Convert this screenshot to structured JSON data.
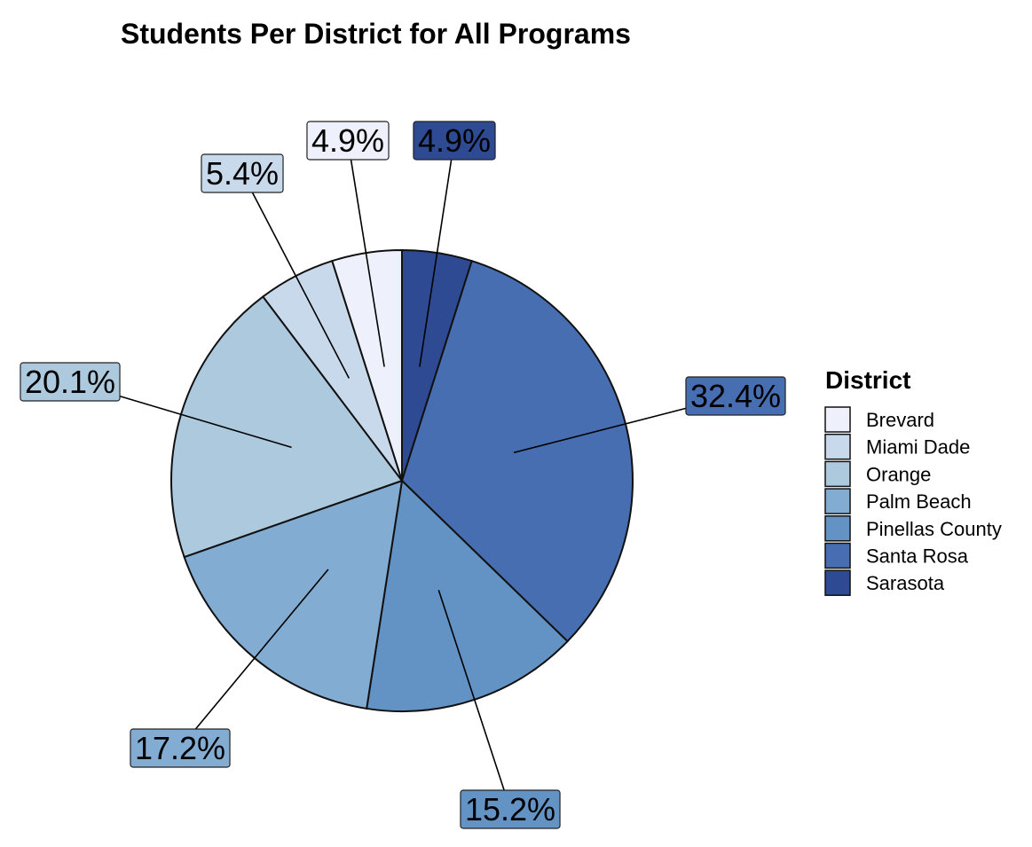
{
  "chart_data": {
    "type": "pie",
    "title": "Students Per District for All Programs",
    "legend_title": "District",
    "legend_position": "right",
    "slices": [
      {
        "name": "Sarasota",
        "value": 4.9,
        "label": "4.9%",
        "color": "#2d4a93"
      },
      {
        "name": "Santa Rosa",
        "value": 32.4,
        "label": "32.4%",
        "color": "#476eb1"
      },
      {
        "name": "Pinellas County",
        "value": 15.2,
        "label": "15.2%",
        "color": "#6293c4"
      },
      {
        "name": "Palm Beach",
        "value": 17.2,
        "label": "17.2%",
        "color": "#82acd2"
      },
      {
        "name": "Orange",
        "value": 20.1,
        "label": "20.1%",
        "color": "#acc9de"
      },
      {
        "name": "Miami Dade",
        "value": 5.4,
        "label": "5.4%",
        "color": "#c9d9ec"
      },
      {
        "name": "Brevard",
        "value": 4.9,
        "label": "4.9%",
        "color": "#eef1fb"
      }
    ],
    "legend": [
      {
        "name": "Brevard",
        "color": "#eef1fb"
      },
      {
        "name": "Miami Dade",
        "color": "#c9d9ec"
      },
      {
        "name": "Orange",
        "color": "#acc9de"
      },
      {
        "name": "Palm Beach",
        "color": "#82acd2"
      },
      {
        "name": "Pinellas County",
        "color": "#6293c4"
      },
      {
        "name": "Santa Rosa",
        "color": "#476eb1"
      },
      {
        "name": "Sarasota",
        "color": "#2d4a93"
      }
    ]
  }
}
